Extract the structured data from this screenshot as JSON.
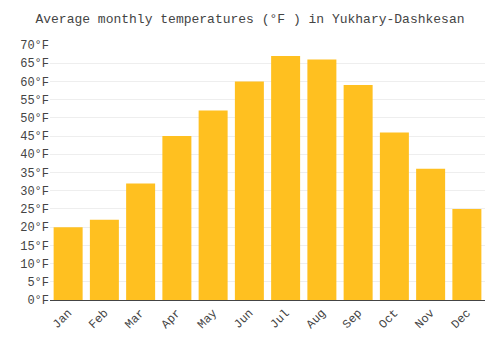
{
  "chart_data": {
    "type": "bar",
    "title": "Average monthly temperatures (°F ) in Yukhary-Dashkesan",
    "categories": [
      "Jan",
      "Feb",
      "Mar",
      "Apr",
      "May",
      "Jun",
      "Jul",
      "Aug",
      "Sep",
      "Oct",
      "Nov",
      "Dec"
    ],
    "values": [
      20,
      22,
      32,
      45,
      52,
      60,
      67,
      66,
      59,
      46,
      36,
      25
    ],
    "color": "#FFC020",
    "ylim": [
      0,
      70
    ],
    "yticks": [
      {
        "value": 0,
        "label": "0°F"
      },
      {
        "value": 5,
        "label": "5°F"
      },
      {
        "value": 10,
        "label": "10°F"
      },
      {
        "value": 15,
        "label": "15°F"
      },
      {
        "value": 20,
        "label": "20°F"
      },
      {
        "value": 25,
        "label": "25°F"
      },
      {
        "value": 30,
        "label": "30°F"
      },
      {
        "value": 35,
        "label": "35°F"
      },
      {
        "value": 40,
        "label": "40°F"
      },
      {
        "value": 45,
        "label": "45°F"
      },
      {
        "value": 50,
        "label": "50°F"
      },
      {
        "value": 55,
        "label": "55°F"
      },
      {
        "value": 60,
        "label": "60°F"
      },
      {
        "value": 65,
        "label": "65°F"
      },
      {
        "value": 70,
        "label": "70°F"
      }
    ],
    "grid": true
  }
}
